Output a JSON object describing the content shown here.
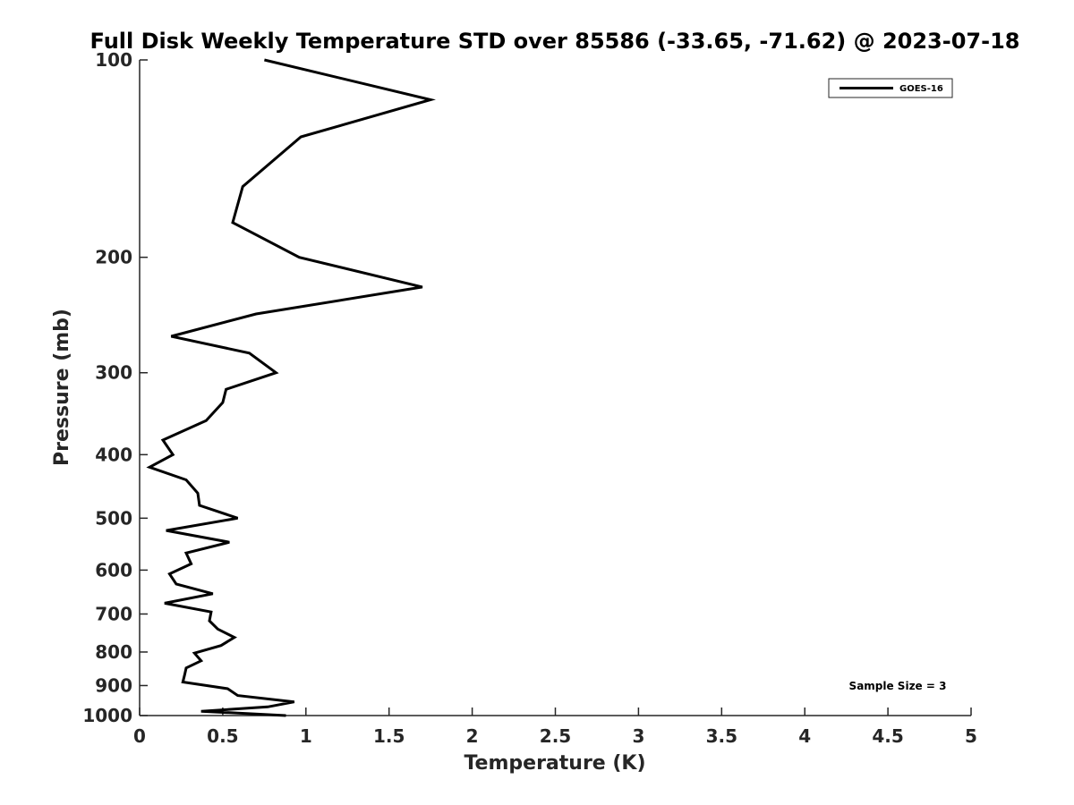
{
  "chart_data": {
    "type": "line",
    "title": "Full Disk Weekly Temperature STD over 85586 (-33.65, -71.62) @ 2023-07-18",
    "xlabel": "Temperature (K)",
    "ylabel": "Pressure (mb)",
    "xlim": [
      0,
      5
    ],
    "ylim": [
      1000,
      100
    ],
    "y_scale": "log",
    "y_reversed": true,
    "xticks": [
      "0",
      "0.5",
      "1",
      "1.5",
      "2",
      "2.5",
      "3",
      "3.5",
      "4",
      "4.5",
      "5"
    ],
    "yticks": [
      "100",
      "200",
      "300",
      "400",
      "500",
      "600",
      "700",
      "800",
      "900",
      "1000"
    ],
    "grid": false,
    "legend_position": "top-right",
    "series": [
      {
        "name": "GOES-16",
        "color": "#000000",
        "points": [
          [
            0.75,
            100
          ],
          [
            1.75,
            115
          ],
          [
            0.97,
            131
          ],
          [
            0.62,
            156
          ],
          [
            0.56,
            177
          ],
          [
            0.96,
            200
          ],
          [
            1.7,
            222
          ],
          [
            0.7,
            244
          ],
          [
            0.19,
            264
          ],
          [
            0.66,
            280
          ],
          [
            0.82,
            300
          ],
          [
            0.52,
            318
          ],
          [
            0.5,
            333
          ],
          [
            0.4,
            355
          ],
          [
            0.14,
            380
          ],
          [
            0.2,
            400
          ],
          [
            0.06,
            418
          ],
          [
            0.28,
            437
          ],
          [
            0.35,
            458
          ],
          [
            0.36,
            478
          ],
          [
            0.59,
            500
          ],
          [
            0.16,
            522
          ],
          [
            0.54,
            544
          ],
          [
            0.28,
            565
          ],
          [
            0.31,
            587
          ],
          [
            0.18,
            608
          ],
          [
            0.22,
            630
          ],
          [
            0.44,
            652
          ],
          [
            0.15,
            674
          ],
          [
            0.43,
            695
          ],
          [
            0.42,
            717
          ],
          [
            0.47,
            738
          ],
          [
            0.57,
            760
          ],
          [
            0.49,
            782
          ],
          [
            0.33,
            803
          ],
          [
            0.37,
            825
          ],
          [
            0.28,
            846
          ],
          [
            0.27,
            868
          ],
          [
            0.26,
            889
          ],
          [
            0.53,
            910
          ],
          [
            0.59,
            932
          ],
          [
            0.93,
            953
          ],
          [
            0.77,
            970
          ],
          [
            0.37,
            985
          ],
          [
            0.88,
            1000
          ]
        ]
      }
    ],
    "annotations": [
      "Sample Size = 3"
    ]
  }
}
